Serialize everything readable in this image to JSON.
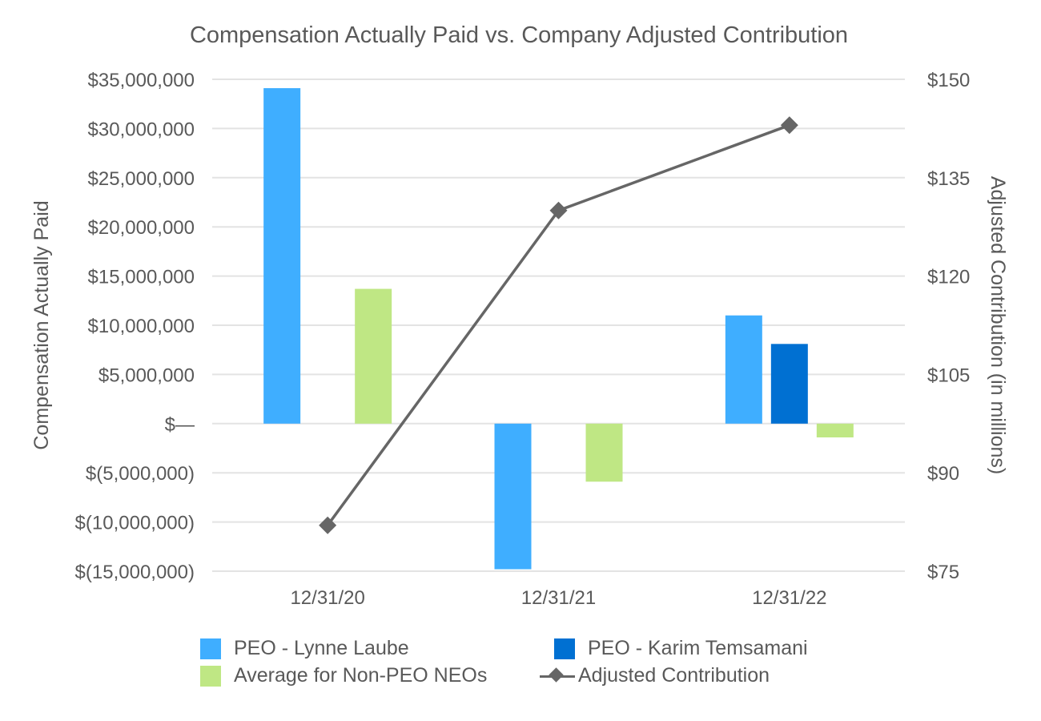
{
  "chart_data": {
    "type": "bar",
    "title": "Compensation Actually Paid vs. Company Adjusted Contribution",
    "categories": [
      "12/31/20",
      "12/31/21",
      "12/31/22"
    ],
    "ylabel": "Compensation Actually Paid",
    "y2label": "Adjusted Contribution (in millions)",
    "ylim": [
      -15000000,
      35000000
    ],
    "y2lim": [
      75,
      150
    ],
    "yticks": [
      35000000,
      30000000,
      25000000,
      20000000,
      15000000,
      10000000,
      5000000,
      0,
      -5000000,
      -10000000,
      -15000000
    ],
    "ytick_labels": [
      "$35,000,000",
      "$30,000,000",
      "$25,000,000",
      "$20,000,000",
      "$15,000,000",
      "$10,000,000",
      "$5,000,000",
      "$—",
      "$(5,000,000)",
      "$(10,000,000)",
      "$(15,000,000)"
    ],
    "y2ticks": [
      150,
      135,
      120,
      105,
      90,
      75
    ],
    "y2tick_labels": [
      "$150",
      "$135",
      "$120",
      "$105",
      "$90",
      "$75"
    ],
    "grid": true,
    "legend_position": "bottom",
    "series": [
      {
        "name": "PEO - Lynne Laube",
        "type": "bar",
        "axis": "left",
        "color": "#3FAEFF",
        "slot": 0,
        "values": [
          34100000,
          -14800000,
          11000000
        ]
      },
      {
        "name": "PEO - Karim Temsamani",
        "type": "bar",
        "axis": "left",
        "color": "#0070D2",
        "slot": 1,
        "values": [
          null,
          null,
          8100000
        ]
      },
      {
        "name": "Average for Non-PEO NEOs",
        "type": "bar",
        "axis": "left",
        "color": "#BFE784",
        "slot": 2,
        "values": [
          13700000,
          -5900000,
          -1400000
        ]
      },
      {
        "name": "Adjusted Contribution",
        "type": "line",
        "axis": "right",
        "color": "#666666",
        "marker": "diamond",
        "values": [
          82,
          130,
          143
        ]
      }
    ]
  },
  "legend": {
    "items": [
      {
        "label": "PEO - Lynne Laube",
        "color": "#3FAEFF",
        "kind": "bar"
      },
      {
        "label": "PEO - Karim Temsamani",
        "color": "#0070D2",
        "kind": "bar"
      },
      {
        "label": "Average for Non-PEO NEOs",
        "color": "#BFE784",
        "kind": "bar"
      },
      {
        "label": "Adjusted Contribution",
        "color": "#666666",
        "kind": "line"
      }
    ]
  }
}
